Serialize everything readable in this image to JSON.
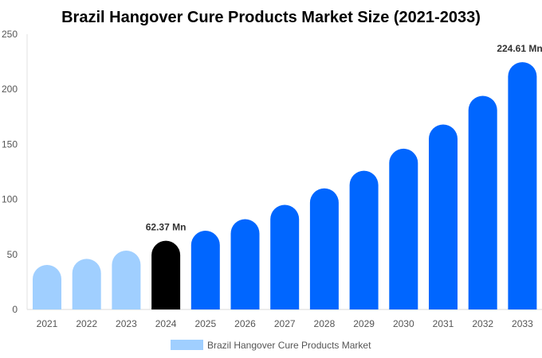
{
  "chart_data": {
    "type": "bar",
    "title": "Brazil Hangover Cure Products Market Size (2021-2033)",
    "xlabel": "",
    "ylabel": "",
    "ylim": [
      0,
      250
    ],
    "yticks": [
      0,
      50,
      100,
      150,
      200,
      250
    ],
    "grid": false,
    "legend_position": "bottom",
    "categories": [
      "2021",
      "2022",
      "2023",
      "2024",
      "2025",
      "2026",
      "2027",
      "2028",
      "2029",
      "2030",
      "2031",
      "2032",
      "2033"
    ],
    "series": [
      {
        "name": "Brazil Hangover Cure Products Market",
        "values": [
          40.5,
          46,
          53.5,
          62.37,
          71.5,
          82,
          95,
          110,
          126,
          146,
          168,
          194,
          224.61
        ]
      }
    ],
    "bar_colors": [
      "#a0cfff",
      "#a0cfff",
      "#a0cfff",
      "#000000",
      "#0066ff",
      "#0066ff",
      "#0066ff",
      "#0066ff",
      "#0066ff",
      "#0066ff",
      "#0066ff",
      "#0066ff",
      "#0066ff"
    ],
    "legend_color": "#a0cfff",
    "data_labels": [
      {
        "category": "2024",
        "text": "62.37 Mn"
      },
      {
        "category": "2033",
        "text": "224.61 Mn"
      }
    ]
  }
}
